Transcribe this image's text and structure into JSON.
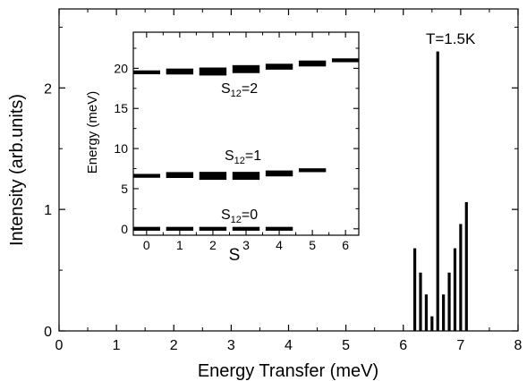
{
  "chart_data": [
    {
      "type": "bar",
      "xlabel": "Energy Transfer (meV)",
      "ylabel": "Intensity (arb.units)",
      "xlim": [
        0,
        8
      ],
      "ylim": [
        0,
        2.65
      ],
      "xticks": [
        "0",
        "1",
        "2",
        "3",
        "4",
        "5",
        "6",
        "7",
        "8"
      ],
      "yticks": [
        "0",
        "1",
        "2"
      ],
      "annotation": "T=1.5K",
      "grid": false,
      "x": [
        6.2,
        6.3,
        6.4,
        6.5,
        6.6,
        6.7,
        6.8,
        6.9,
        7.0,
        7.1
      ],
      "values": [
        0.68,
        0.48,
        0.3,
        0.12,
        2.3,
        0.3,
        0.48,
        0.68,
        0.88,
        1.06
      ]
    },
    {
      "type": "scatter",
      "xlabel": "S",
      "ylabel": "Energy (meV)",
      "xlim": [
        -0.4,
        6.4
      ],
      "ylim": [
        -0.8,
        24.5
      ],
      "xticks": [
        "0",
        "1",
        "2",
        "3",
        "4",
        "5",
        "6"
      ],
      "yticks": [
        "0",
        "5",
        "10",
        "15",
        "20"
      ],
      "grid": false,
      "series": [
        {
          "name": "S₁₂=0",
          "points": [
            {
              "S": 0,
              "E": 0.0,
              "w": 1
            },
            {
              "S": 1,
              "E": 0.0,
              "w": 1
            },
            {
              "S": 2,
              "E": 0.0,
              "w": 1
            },
            {
              "S": 3,
              "E": 0.0,
              "w": 1
            },
            {
              "S": 4,
              "E": 0.0,
              "w": 1
            }
          ]
        },
        {
          "name": "S₁₂=1",
          "points": [
            {
              "S": 0,
              "E": 6.6,
              "w": 1
            },
            {
              "S": 1,
              "E": 6.7,
              "w": 2
            },
            {
              "S": 2,
              "E": 6.6,
              "w": 3
            },
            {
              "S": 3,
              "E": 6.6,
              "w": 3
            },
            {
              "S": 4,
              "E": 6.9,
              "w": 2
            },
            {
              "S": 5,
              "E": 7.3,
              "w": 1
            }
          ]
        },
        {
          "name": "S₁₂=2",
          "points": [
            {
              "S": 0,
              "E": 19.5,
              "w": 1
            },
            {
              "S": 1,
              "E": 19.6,
              "w": 2
            },
            {
              "S": 2,
              "E": 19.6,
              "w": 3
            },
            {
              "S": 3,
              "E": 19.9,
              "w": 3
            },
            {
              "S": 4,
              "E": 20.2,
              "w": 2
            },
            {
              "S": 5,
              "E": 20.6,
              "w": 2
            },
            {
              "S": 6,
              "E": 21.0,
              "w": 1
            }
          ]
        }
      ]
    }
  ]
}
